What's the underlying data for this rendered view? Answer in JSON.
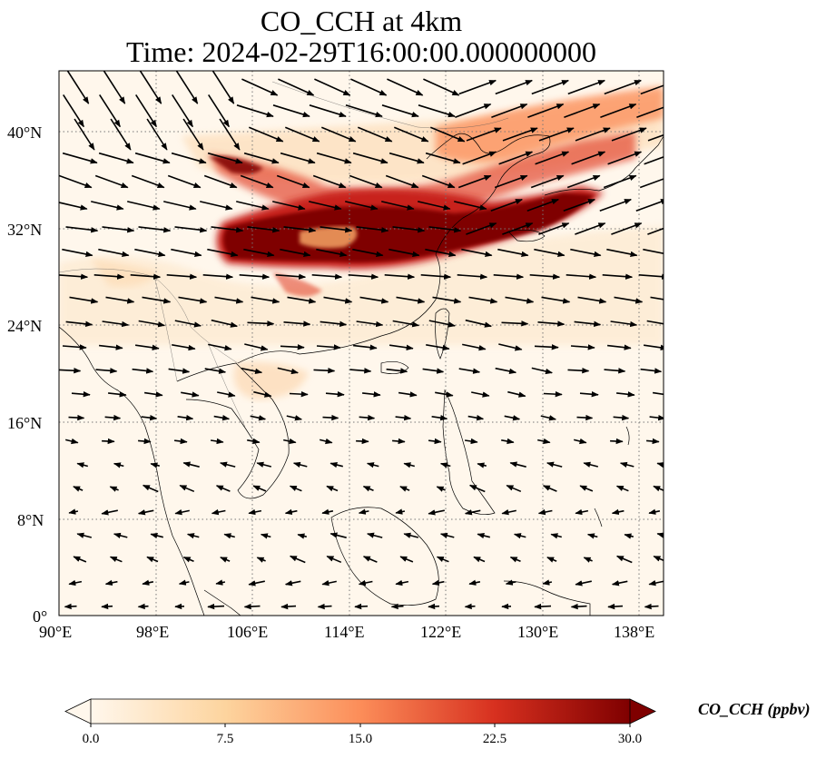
{
  "title": {
    "line1": "CO_CCH at 4km",
    "line2": "Time: 2024-02-29T16:00:00.000000000"
  },
  "map": {
    "extent": {
      "lon_min": 90,
      "lon_max": 140,
      "lat_min": 0,
      "lat_max": 45
    },
    "gridlines": "dotted",
    "coastlines": true,
    "lon_ticks": [
      "90°E",
      "98°E",
      "106°E",
      "114°E",
      "122°E",
      "130°E",
      "138°E"
    ],
    "lat_ticks": [
      "0°",
      "8°N",
      "16°N",
      "24°N",
      "32°N",
      "40°N"
    ],
    "colormap": "OrRd",
    "wind_vectors": true
  },
  "colorbar": {
    "label": "CO_CCH (ppbv)",
    "ticks": [
      "0.0",
      "7.5",
      "15.0",
      "22.5",
      "30.0"
    ],
    "min": 0,
    "max": 30,
    "extend": "both"
  }
}
